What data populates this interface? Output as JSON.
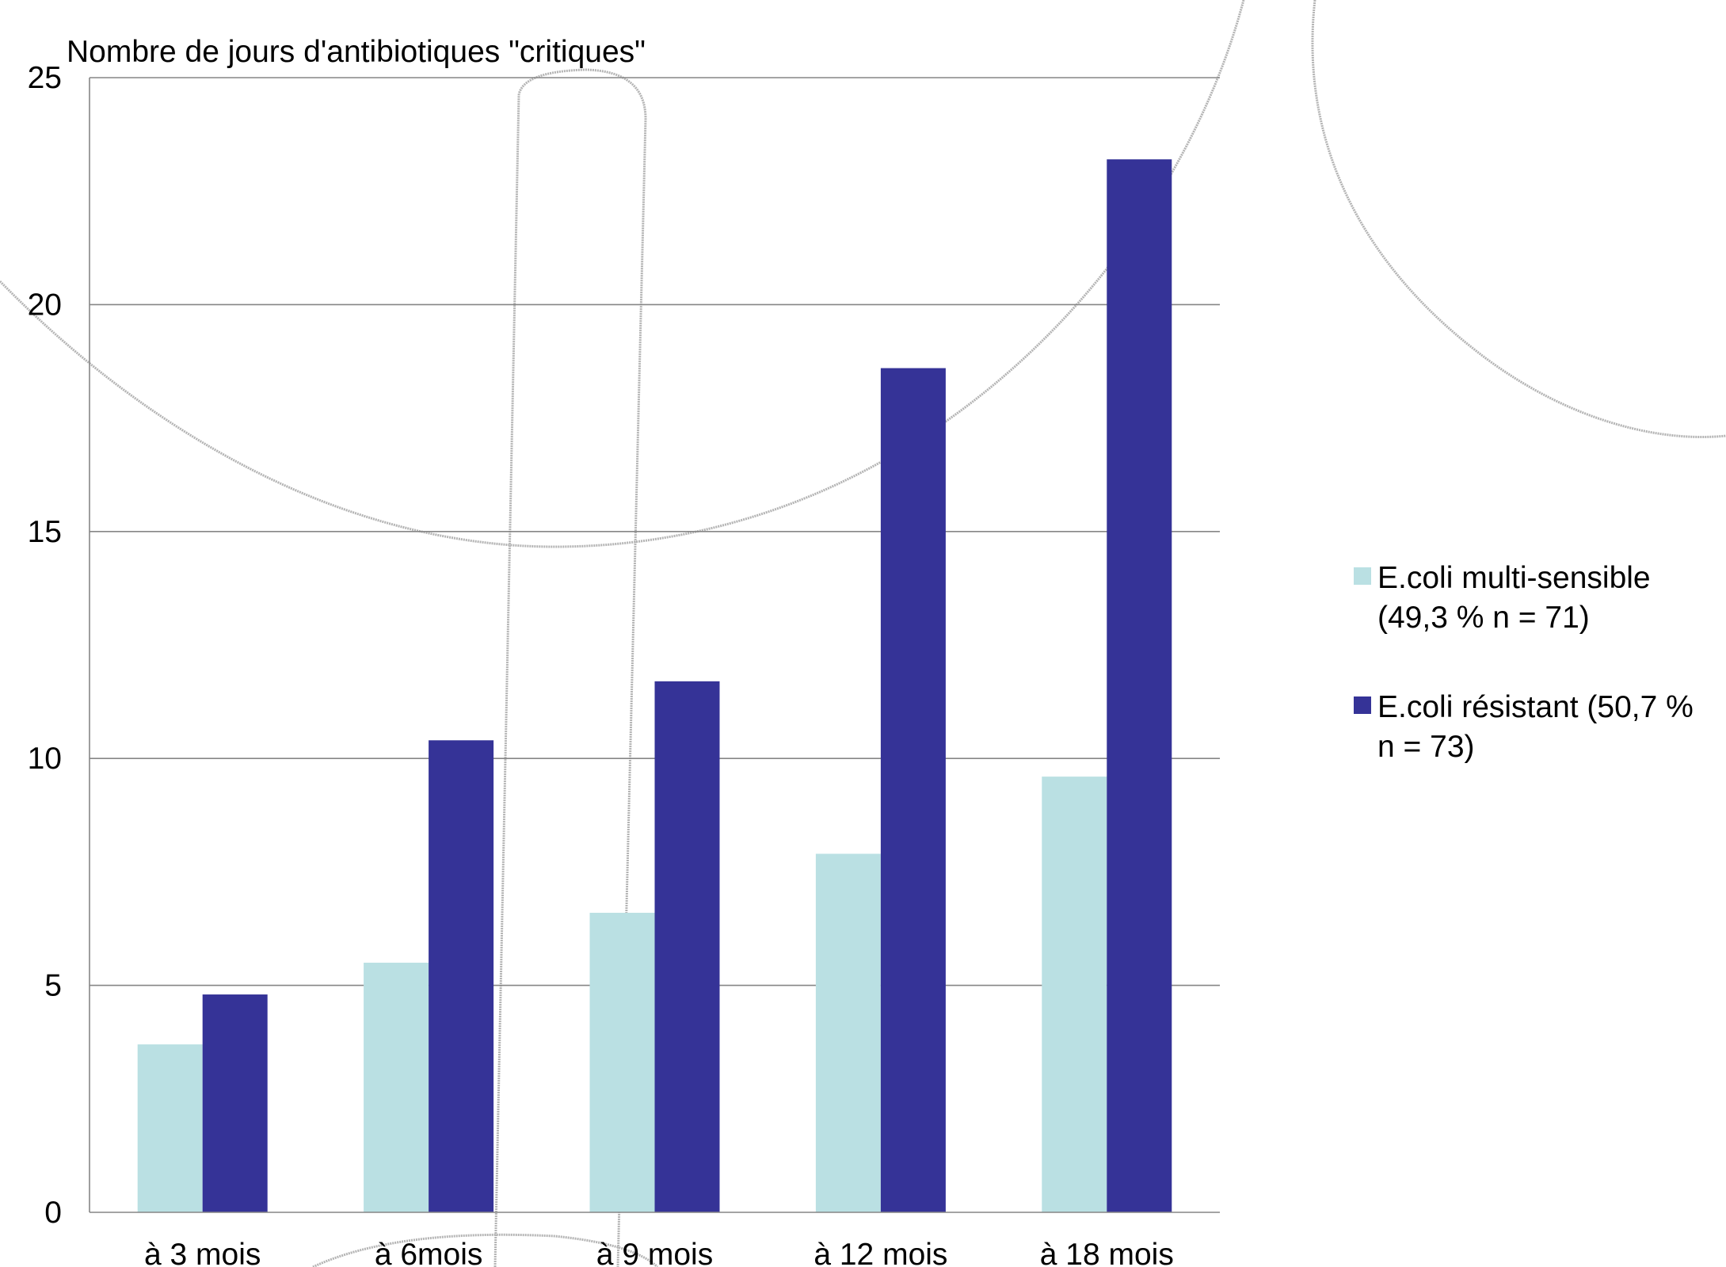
{
  "chart_data": {
    "type": "bar",
    "title": "",
    "ylabel": "Nombre de jours d'antibiotiques \"critiques\"",
    "xlabel": "",
    "ylim": [
      0,
      25
    ],
    "yticks": [
      0,
      5,
      10,
      15,
      20,
      25
    ],
    "categories": [
      "à 3 mois",
      "à 6mois",
      "à 9 mois",
      "à 12 mois",
      "à 18 mois"
    ],
    "grid": true,
    "legend_position": "right",
    "series": [
      {
        "name_lines": [
          "E.coli multi-sensible",
          "(49,3 % n = 71)"
        ],
        "color": "#bae0e3",
        "values": [
          3.7,
          5.5,
          6.6,
          7.9,
          9.6
        ]
      },
      {
        "name_lines": [
          "E.coli résistant (50,7 %",
          "n = 73)"
        ],
        "color": "#353397",
        "values": [
          4.8,
          10.4,
          11.7,
          18.6,
          23.2
        ]
      }
    ]
  }
}
